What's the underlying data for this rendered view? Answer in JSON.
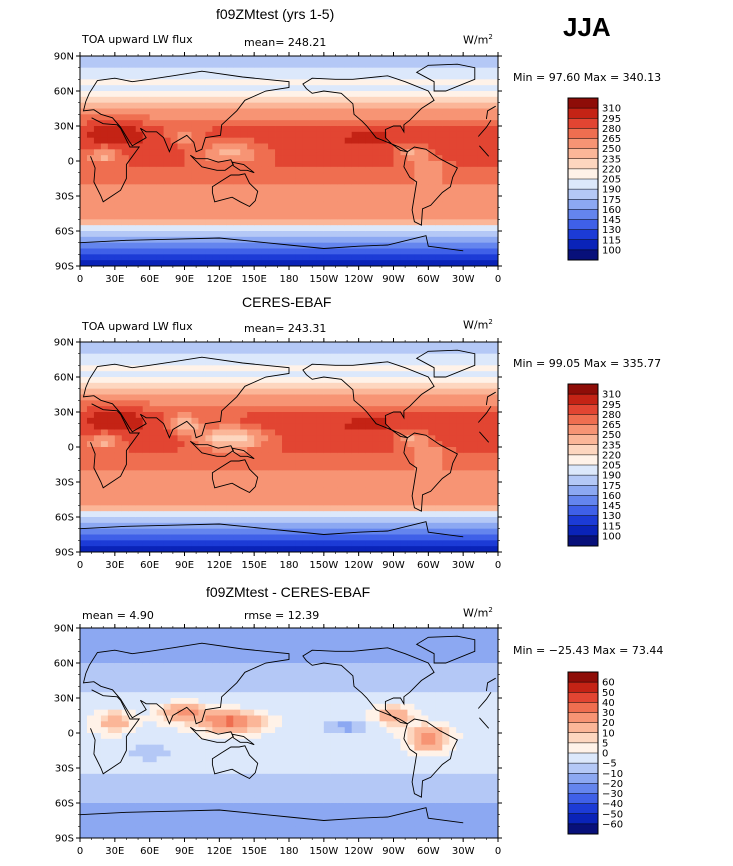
{
  "header": {
    "season": "JJA"
  },
  "colors": {
    "abs_scale": [
      "#08107a",
      "#0a23b8",
      "#1c3bd6",
      "#3f60e8",
      "#6485ee",
      "#8ca8f2",
      "#b4c8f6",
      "#dce8fb",
      "#fff2e8",
      "#fdd6bf",
      "#fbb698",
      "#f79474",
      "#ef6e50",
      "#e24532",
      "#c42315",
      "#8e0d08"
    ],
    "diff_scale": [
      "#08107a",
      "#0a23b8",
      "#1c3bd6",
      "#3f60e8",
      "#6485ee",
      "#8ca8f2",
      "#b4c8f6",
      "#dce8fb",
      "#fff2e8",
      "#fdd6bf",
      "#fbb698",
      "#f79474",
      "#ef6e50",
      "#e24532",
      "#c42315",
      "#8e0d08"
    ]
  },
  "axes": {
    "lat_labels": [
      "90N",
      "60N",
      "30N",
      "0",
      "30S",
      "60S",
      "90S"
    ],
    "lon_labels": [
      "0",
      "30E",
      "60E",
      "90E",
      "120E",
      "150E",
      "180",
      "150W",
      "120W",
      "90W",
      "60W",
      "30W",
      "0"
    ]
  },
  "panels": [
    {
      "title": "f09ZMtest (yrs 1-5)",
      "left_label": "TOA upward LW flux",
      "mean_label": "mean= 248.21",
      "rmse_label": "",
      "units_base": "W/m",
      "units_exp": "2",
      "stats": "Min =   97.60 Max = 340.13",
      "levels": [
        "310",
        "295",
        "280",
        "265",
        "250",
        "235",
        "220",
        "205",
        "190",
        "175",
        "160",
        "145",
        "130",
        "115",
        "100"
      ],
      "kind": "model"
    },
    {
      "title": "CERES-EBAF",
      "left_label": "TOA upward LW flux",
      "mean_label": "mean= 243.31",
      "rmse_label": "",
      "units_base": "W/m",
      "units_exp": "2",
      "stats": "Min =   99.05 Max = 335.77",
      "levels": [
        "310",
        "295",
        "280",
        "265",
        "250",
        "235",
        "220",
        "205",
        "190",
        "175",
        "160",
        "145",
        "130",
        "115",
        "100"
      ],
      "kind": "obs"
    },
    {
      "title": "f09ZMtest - CERES-EBAF",
      "left_label": "mean =    4.90",
      "mean_label": "rmse =   12.39",
      "rmse_label": "",
      "units_base": "W/m",
      "units_exp": "2",
      "stats": "Min = −25.43 Max =  73.44",
      "levels": [
        "60",
        "50",
        "40",
        "30",
        "20",
        "10",
        "5",
        "0",
        "−5",
        "−10",
        "−20",
        "−30",
        "−40",
        "−50",
        "−60"
      ],
      "kind": "diff"
    }
  ]
}
